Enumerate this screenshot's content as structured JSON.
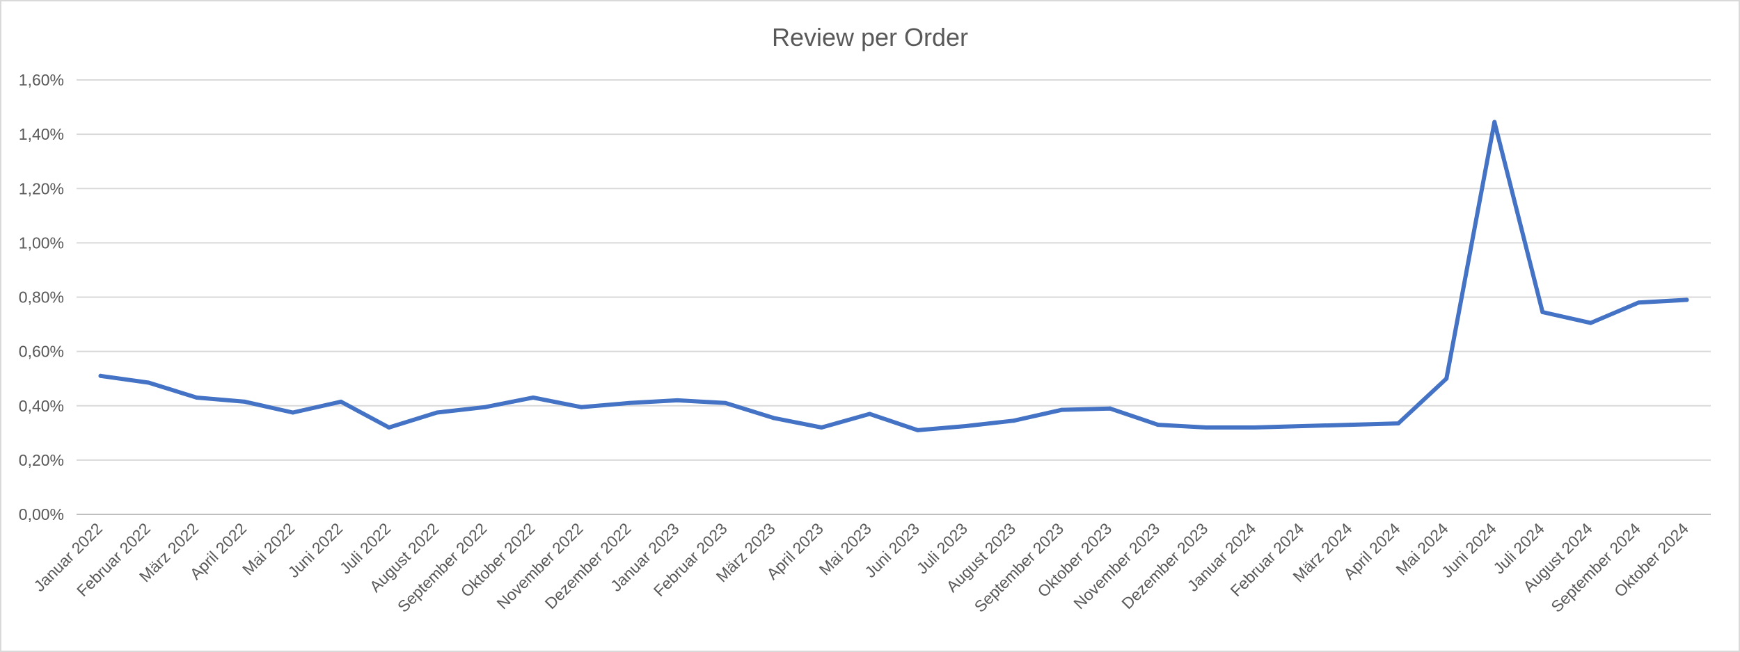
{
  "chart_data": {
    "type": "line",
    "title": "Review per Order",
    "xlabel": "",
    "ylabel": "",
    "ylim": [
      0,
      0.016
    ],
    "y_tick_step": 0.002,
    "y_tick_labels": [
      "0,00%",
      "0,20%",
      "0,40%",
      "0,60%",
      "0,80%",
      "1,00%",
      "1,20%",
      "1,40%",
      "1,60%"
    ],
    "grid": true,
    "legend": "none",
    "series_color": "#4472C4",
    "categories": [
      "Januar 2022",
      "Februar 2022",
      "März 2022",
      "April 2022",
      "Mai 2022",
      "Juni 2022",
      "Juli 2022",
      "August 2022",
      "September 2022",
      "Oktober 2022",
      "November 2022",
      "Dezember 2022",
      "Januar 2023",
      "Februar 2023",
      "März 2023",
      "April 2023",
      "Mai 2023",
      "Juni 2023",
      "Juli 2023",
      "August 2023",
      "September 2023",
      "Oktober 2023",
      "November 2023",
      "Dezember 2023",
      "Januar 2024",
      "Februar 2024",
      "März 2024",
      "April 2024",
      "Mai 2024",
      "Juni 2024",
      "Juli 2024",
      "August 2024",
      "September 2024",
      "Oktober 2024"
    ],
    "series": [
      {
        "values": [
          0.0051,
          0.00485,
          0.0043,
          0.00415,
          0.00375,
          0.00415,
          0.0032,
          0.00375,
          0.00395,
          0.0043,
          0.00395,
          0.0041,
          0.0042,
          0.0041,
          0.00355,
          0.0032,
          0.0037,
          0.0031,
          0.00325,
          0.00345,
          0.00385,
          0.0039,
          0.0033,
          0.0032,
          0.0032,
          0.00325,
          0.0033,
          0.00335,
          0.005,
          0.01445,
          0.00745,
          0.00705,
          0.0078,
          0.0079
        ]
      }
    ]
  }
}
